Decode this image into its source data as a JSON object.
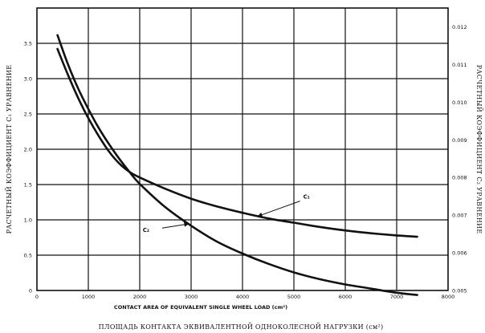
{
  "chart_data": {
    "type": "line",
    "xlabel": "CONTACT AREA OF EQUIVALENT SINGLE WHEEL LOAD (cm²)",
    "xlabel_translation": "ПЛОЩАДЬ КОНТАКТА ЭКВИВАЛЕНТНОЙ ОДНОКОЛЕСНОЙ НАГРУЗКИ (см²)",
    "ylabel_left": "РАСЧЕТНЫЙ КОЭФФИЦИЕНТ C₁ УРАВНЕНИЕ",
    "ylabel_right": "РАСЧЕТНЫЙ КОЭФФИЦИЕНТ C₂ УРАВНЕНИЕ",
    "xlim": [
      0,
      8000
    ],
    "ylim_left": [
      0,
      4.0
    ],
    "ylim_right": [
      0.005,
      0.0125
    ],
    "x_ticks": [
      "0",
      "1000",
      "2000",
      "3000",
      "4000",
      "5000",
      "6000",
      "7000",
      "8000"
    ],
    "y_left_ticks": [
      "0",
      "0.5",
      "1.0",
      "1.5",
      "2.0",
      "2.5",
      "3.0",
      "3.5"
    ],
    "y_right_ticks": [
      "0.005",
      "0.006",
      "0.007",
      "0.008",
      "0.009",
      "0.010",
      "0.011",
      "0.012"
    ],
    "grid": true,
    "series": [
      {
        "name": "C₁",
        "axis": "left",
        "x": [
          400,
          600,
          800,
          1000,
          1200,
          1400,
          1600,
          1800,
          2000,
          2500,
          3000,
          3500,
          4000,
          4500,
          5000,
          5500,
          6000,
          6500,
          7000,
          7400
        ],
        "y": [
          3.42,
          3.06,
          2.73,
          2.44,
          2.19,
          1.97,
          1.8,
          1.68,
          1.6,
          1.44,
          1.3,
          1.19,
          1.1,
          1.02,
          0.96,
          0.9,
          0.85,
          0.81,
          0.78,
          0.76
        ]
      },
      {
        "name": "C₂",
        "axis": "right",
        "x": [
          400,
          600,
          800,
          1000,
          1200,
          1400,
          1600,
          1800,
          2000,
          2500,
          3000,
          3500,
          4000,
          4500,
          5000,
          5500,
          6000,
          6500,
          7000,
          7400
        ],
        "y": [
          0.01178,
          0.01102,
          0.01037,
          0.00982,
          0.00932,
          0.00889,
          0.0085,
          0.00815,
          0.00783,
          0.00721,
          0.00672,
          0.0063,
          0.00598,
          0.00571,
          0.00548,
          0.0053,
          0.00516,
          0.00505,
          0.00494,
          0.00488
        ]
      }
    ],
    "annotations": [
      {
        "series": "C₁",
        "label": "C₁",
        "at_x": 4300,
        "text_x": 5150,
        "text_y_left": 1.3
      },
      {
        "series": "C₂",
        "label": "C₂",
        "at_x": 2950,
        "text_x": 2250,
        "text_y_left": 0.85
      }
    ]
  }
}
